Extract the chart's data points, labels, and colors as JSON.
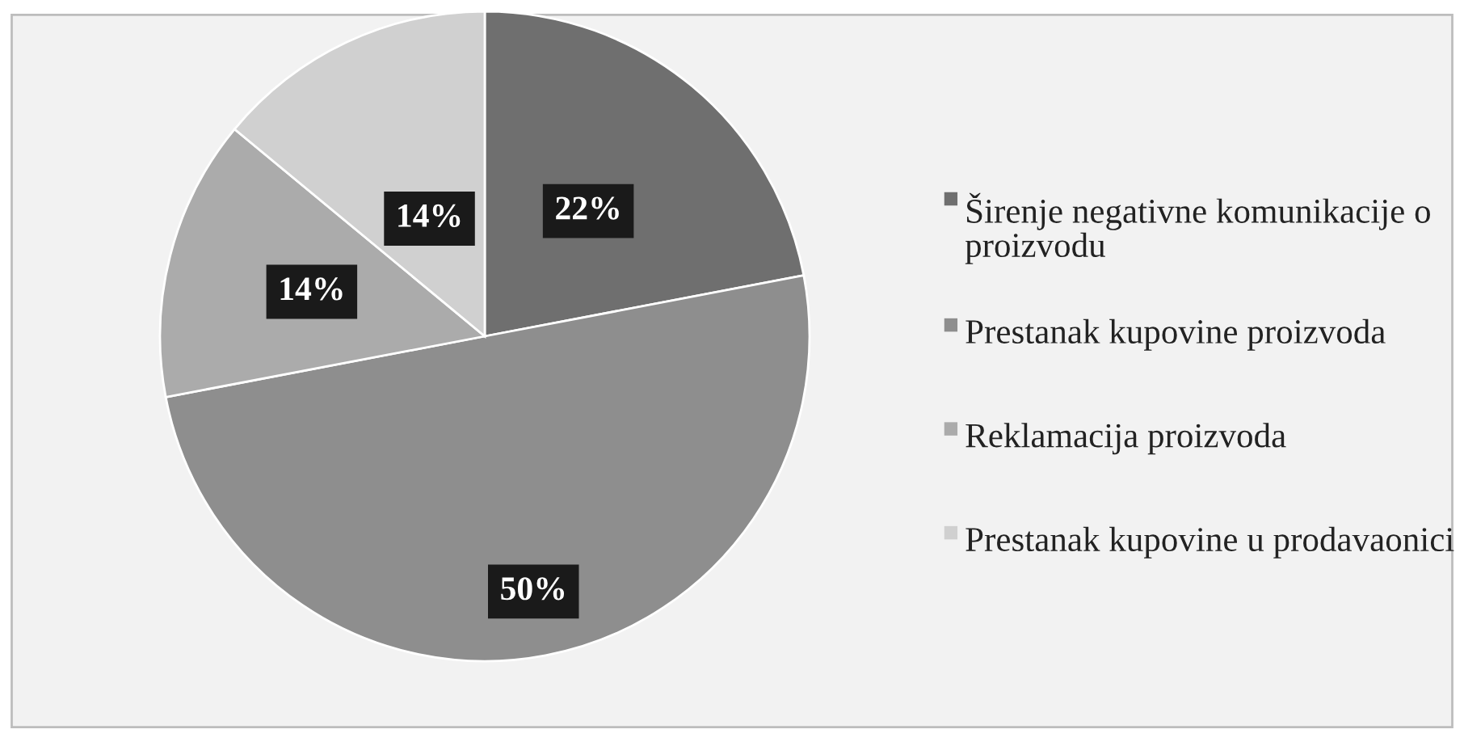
{
  "chart_data": {
    "type": "pie",
    "categories": [
      "Širenje negativne komunikacije o proizvodu",
      "Prestanak kupovine proizvoda",
      "Reklamacija proizvoda",
      "Prestanak kupovine u prodavaonici"
    ],
    "values": [
      22,
      50,
      14,
      14
    ],
    "colors": [
      "#6f6f6f",
      "#8e8e8e",
      "#ababab",
      "#d0d0d0"
    ],
    "value_labels": [
      "22%",
      "50%",
      "14%",
      "14%"
    ],
    "legend": "right"
  }
}
